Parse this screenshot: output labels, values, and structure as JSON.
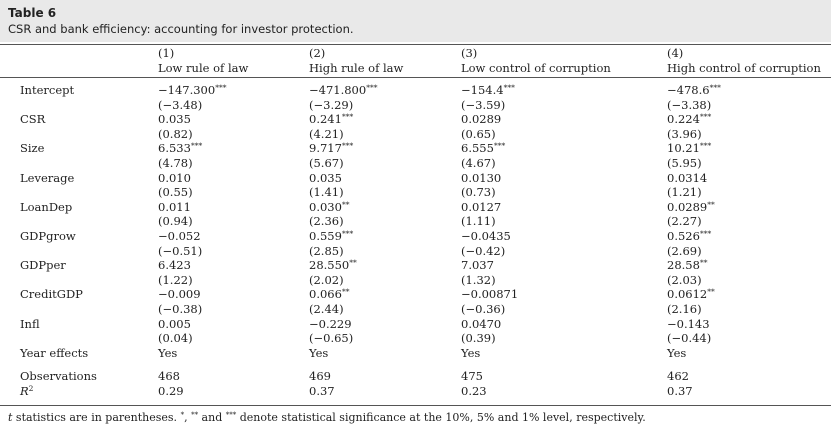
{
  "table": {
    "label": "Table 6",
    "title": "CSR and bank efficiency: accounting for investor protection."
  },
  "columns": [
    {
      "number": "(1)",
      "name": "Low rule of law"
    },
    {
      "number": "(2)",
      "name": "High rule of law"
    },
    {
      "number": "(3)",
      "name": "Low control of corruption"
    },
    {
      "number": "(4)",
      "name": "High control of corruption"
    }
  ],
  "variables": [
    {
      "name": "Intercept",
      "coefs": [
        {
          "v": "−147.300",
          "s": "***"
        },
        {
          "v": "−471.800",
          "s": "***"
        },
        {
          "v": "−154.4",
          "s": "***"
        },
        {
          "v": "−478.6",
          "s": "***"
        }
      ],
      "tstats": [
        "(−3.48)",
        "(−3.29)",
        "(−3.59)",
        "(−3.38)"
      ]
    },
    {
      "name": "CSR",
      "coefs": [
        {
          "v": "0.035",
          "s": ""
        },
        {
          "v": "0.241",
          "s": "***"
        },
        {
          "v": "0.0289",
          "s": ""
        },
        {
          "v": "0.224",
          "s": "***"
        }
      ],
      "tstats": [
        "(0.82)",
        "(4.21)",
        "(0.65)",
        "(3.96)"
      ]
    },
    {
      "name": "Size",
      "coefs": [
        {
          "v": "6.533",
          "s": "***"
        },
        {
          "v": "9.717",
          "s": "***"
        },
        {
          "v": "6.555",
          "s": "***"
        },
        {
          "v": "10.21",
          "s": "***"
        }
      ],
      "tstats": [
        "(4.78)",
        "(5.67)",
        "(4.67)",
        "(5.95)"
      ]
    },
    {
      "name": "Leverage",
      "coefs": [
        {
          "v": "0.010",
          "s": ""
        },
        {
          "v": "0.035",
          "s": ""
        },
        {
          "v": "0.0130",
          "s": ""
        },
        {
          "v": "0.0314",
          "s": ""
        }
      ],
      "tstats": [
        "(0.55)",
        "(1.41)",
        "(0.73)",
        "(1.21)"
      ]
    },
    {
      "name": "LoanDep",
      "coefs": [
        {
          "v": "0.011",
          "s": ""
        },
        {
          "v": "0.030",
          "s": "**"
        },
        {
          "v": "0.0127",
          "s": ""
        },
        {
          "v": "0.0289",
          "s": "**"
        }
      ],
      "tstats": [
        "(0.94)",
        "(2.36)",
        "(1.11)",
        "(2.27)"
      ]
    },
    {
      "name": "GDPgrow",
      "coefs": [
        {
          "v": "−0.052",
          "s": ""
        },
        {
          "v": "0.559",
          "s": "***"
        },
        {
          "v": "−0.0435",
          "s": ""
        },
        {
          "v": "0.526",
          "s": "***"
        }
      ],
      "tstats": [
        "(−0.51)",
        "(2.85)",
        "(−0.42)",
        "(2.69)"
      ]
    },
    {
      "name": "GDPper",
      "coefs": [
        {
          "v": "6.423",
          "s": ""
        },
        {
          "v": "28.550",
          "s": "**"
        },
        {
          "v": "7.037",
          "s": ""
        },
        {
          "v": "28.58",
          "s": "**"
        }
      ],
      "tstats": [
        "(1.22)",
        "(2.02)",
        "(1.32)",
        "(2.03)"
      ]
    },
    {
      "name": "CreditGDP",
      "coefs": [
        {
          "v": "−0.009",
          "s": ""
        },
        {
          "v": "0.066",
          "s": "**"
        },
        {
          "v": "−0.00871",
          "s": ""
        },
        {
          "v": "0.0612",
          "s": "**"
        }
      ],
      "tstats": [
        "(−0.38)",
        "(2.44)",
        "(−0.36)",
        "(2.16)"
      ]
    },
    {
      "name": "Infl",
      "coefs": [
        {
          "v": "0.005",
          "s": ""
        },
        {
          "v": "−0.229",
          "s": ""
        },
        {
          "v": "0.0470",
          "s": ""
        },
        {
          "v": "−0.143",
          "s": ""
        }
      ],
      "tstats": [
        "(0.04)",
        "(−0.65)",
        "(0.39)",
        "(−0.44)"
      ]
    }
  ],
  "year_effects": {
    "label": "Year effects",
    "values": [
      "Yes",
      "Yes",
      "Yes",
      "Yes"
    ]
  },
  "observations": {
    "label": "Observations",
    "values": [
      "468",
      "469",
      "475",
      "462"
    ]
  },
  "r_squared": {
    "label": "R",
    "label_sup": "2",
    "values": [
      "0.29",
      "0.37",
      "0.23",
      "0.37"
    ]
  },
  "footnote": {
    "t": "t",
    "part1": " statistics are in parentheses. ",
    "s1": "*",
    "comma": ", ",
    "s2": "**",
    "and": " and ",
    "s3": "***",
    "part2": " denote statistical significance at the 10%, 5% and 1% level, respectively."
  }
}
